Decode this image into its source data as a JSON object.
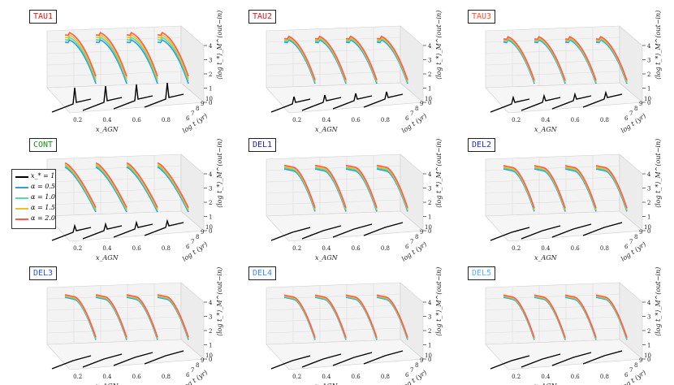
{
  "chart_data": {
    "type": "line",
    "description_axes": {
      "xlabel": "x_AGN",
      "ylabel": "log t (yr)",
      "zlabel": "⟨log t_*⟩_M^(out−in)",
      "x_ticks": [
        "0.2",
        "0.4",
        "0.6",
        "0.8"
      ],
      "y_ticks": [
        "6",
        "7",
        "8",
        "9",
        "10"
      ],
      "z_ticks": [
        "0",
        "1",
        "2",
        "3",
        "4"
      ]
    },
    "legend": [
      {
        "label": "x_* = 1",
        "color": "#000000"
      },
      {
        "label": "α = 0.5",
        "color": "#2f9fd6"
      },
      {
        "label": "α = 1.0",
        "color": "#5cd6a8"
      },
      {
        "label": "α = 1.5",
        "color": "#f0c020"
      },
      {
        "label": "α = 2.0",
        "color": "#ff5a4a"
      }
    ],
    "panels": [
      {
        "title": "TAU1",
        "title_color": "#cc2222",
        "shape": "tau",
        "spike": 1.0,
        "fan": 1.0
      },
      {
        "title": "TAU2",
        "title_color": "#cc2222",
        "shape": "tau",
        "spike": 0.45,
        "fan": 0.5
      },
      {
        "title": "TAU3",
        "title_color": "#ee5533",
        "shape": "tau",
        "spike": 0.4,
        "fan": 0.45
      },
      {
        "title": "CONT",
        "title_color": "#228822",
        "shape": "cont",
        "spike": 0.4,
        "fan": 0.6
      },
      {
        "title": "DEL1",
        "title_color": "#222299",
        "shape": "del",
        "spike": 0.0,
        "fan": 0.5
      },
      {
        "title": "DEL2",
        "title_color": "#2233bb",
        "shape": "del",
        "spike": 0.0,
        "fan": 0.45
      },
      {
        "title": "DEL3",
        "title_color": "#3355cc",
        "shape": "del",
        "spike": 0.0,
        "fan": 0.35
      },
      {
        "title": "DEL4",
        "title_color": "#4488dd",
        "shape": "del",
        "spike": 0.0,
        "fan": 0.3
      },
      {
        "title": "DEL5",
        "title_color": "#66aaee",
        "shape": "del",
        "spike": 0.0,
        "fan": 0.3
      }
    ],
    "x_agn_series": [
      0.2,
      0.4,
      0.6,
      0.8
    ],
    "grid": true,
    "legend_position": "left, middle row"
  }
}
